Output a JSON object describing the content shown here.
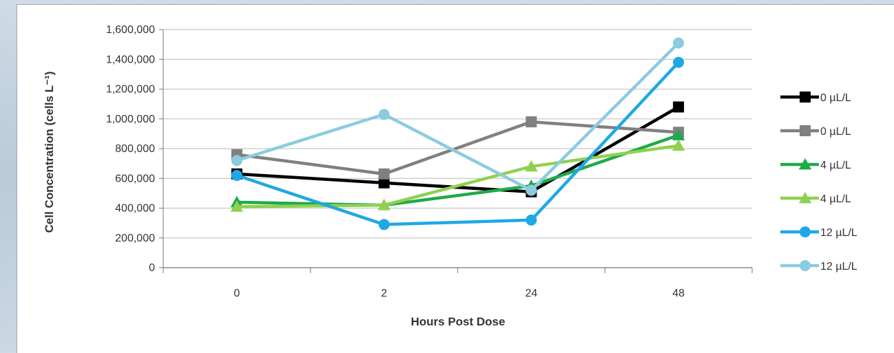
{
  "chart_data": {
    "type": "line",
    "categories": [
      "0",
      "2",
      "24",
      "48"
    ],
    "xlabel": "Hours Post Dose",
    "ylabel": "Cell Concentration (cells L⁻¹)",
    "ylim": [
      0,
      1600000
    ],
    "yticks": [
      "0",
      "200,000",
      "400,000",
      "600,000",
      "800,000",
      "1,000,000",
      "1,200,000",
      "1,400,000",
      "1,600,000"
    ],
    "grid": true,
    "legend_position": "right",
    "series": [
      {
        "name": "0 µL/L",
        "values": [
          630000,
          570000,
          510000,
          1080000
        ],
        "color": "#000000",
        "marker": "square"
      },
      {
        "name": "0 µL/L",
        "values": [
          760000,
          630000,
          980000,
          910000
        ],
        "color": "#808080",
        "marker": "square"
      },
      {
        "name": "4 µL/L",
        "values": [
          440000,
          420000,
          550000,
          890000
        ],
        "color": "#1faa4a",
        "marker": "triangle"
      },
      {
        "name": "4 µL/L",
        "values": [
          410000,
          420000,
          680000,
          820000
        ],
        "color": "#8fd14f",
        "marker": "triangle"
      },
      {
        "name": "12 µL/L",
        "values": [
          620000,
          290000,
          320000,
          1380000
        ],
        "color": "#1fa8e6",
        "marker": "circle"
      },
      {
        "name": "12 µL/L",
        "values": [
          720000,
          1030000,
          520000,
          1510000
        ],
        "color": "#8ccbe0",
        "marker": "circle"
      }
    ]
  }
}
